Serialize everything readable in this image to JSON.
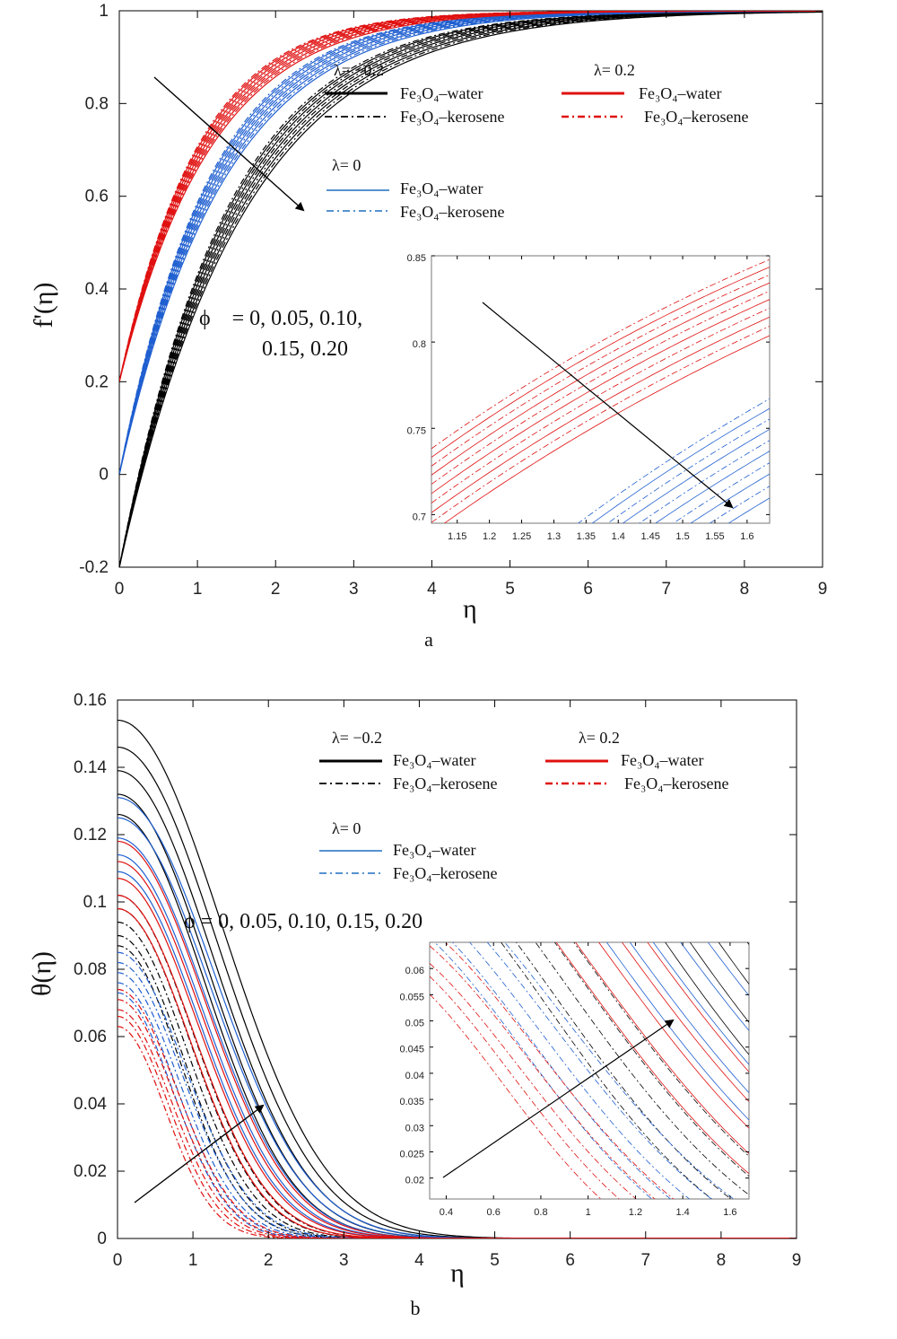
{
  "panels": [
    {
      "id": "a",
      "caption": "a",
      "ylabel": "f'(η)",
      "xlabel": "η",
      "xlim": [
        0,
        9
      ],
      "ylim": [
        -0.2,
        1
      ],
      "xticks": [
        "0",
        "1",
        "2",
        "3",
        "4",
        "5",
        "6",
        "7",
        "8",
        "9"
      ],
      "yticks": [
        "-0.2",
        "0",
        "0.2",
        "0.4",
        "0.6",
        "0.8",
        "1"
      ],
      "legend": {
        "groups": [
          {
            "title": "λ= −0.2",
            "color": "#000000",
            "water": "Fe₃O₄–water",
            "kerosene": "Fe₃O₄–kerosene"
          },
          {
            "title": "λ= 0.2",
            "color": "#e01010",
            "water": "Fe₃O₄–water",
            "kerosene": "Fe₃O₄–kerosene"
          },
          {
            "title": "λ= 0",
            "color": "#1f5fd0",
            "water": "Fe₃O₄–water",
            "kerosene": "Fe₃O₄–kerosene"
          }
        ]
      },
      "phi_annotation_1": "ϕ    = 0, 0.05, 0.10,",
      "phi_annotation_2": "0.15, 0.20",
      "inset": {
        "xlim": [
          1.11,
          1.635
        ],
        "ylim": [
          0.695,
          0.85
        ],
        "xticks": [
          "1.15",
          "1.2",
          "1.25",
          "1.3",
          "1.35",
          "1.4",
          "1.45",
          "1.5",
          "1.55",
          "1.6"
        ],
        "yticks": [
          "0.7",
          "0.75",
          "0.8",
          "0.85"
        ]
      }
    },
    {
      "id": "b",
      "caption": "b",
      "ylabel": "θ(η)",
      "xlabel": "η",
      "xlim": [
        0,
        9
      ],
      "ylim": [
        0,
        0.16
      ],
      "xticks": [
        "0",
        "1",
        "2",
        "3",
        "4",
        "5",
        "6",
        "7",
        "8",
        "9"
      ],
      "yticks": [
        "0",
        "0.02",
        "0.04",
        "0.06",
        "0.08",
        "0.1",
        "0.12",
        "0.14",
        "0.16"
      ],
      "legend": {
        "groups": [
          {
            "title": "λ= −0.2",
            "color": "#000000",
            "water": "Fe₃O₄–water",
            "kerosene": "Fe₃O₄–kerosene"
          },
          {
            "title": "λ= 0.2",
            "color": "#e01010",
            "water": "Fe₃O₄–water",
            "kerosene": "Fe₃O₄–kerosene"
          },
          {
            "title": "λ= 0",
            "color": "#1f5fd0",
            "water": "Fe₃O₄–water",
            "kerosene": "Fe₃O₄–kerosene"
          }
        ]
      },
      "phi_annotation_1": "ϕ = 0, 0.05, 0.10, 0.15, 0.20",
      "inset": {
        "xlim": [
          0.33,
          1.68
        ],
        "ylim": [
          0.016,
          0.065
        ],
        "xticks": [
          "0.4",
          "0.6",
          "0.8",
          "1",
          "1.2",
          "1.4",
          "1.6"
        ],
        "yticks": [
          "0.02",
          "0.025",
          "0.03",
          "0.035",
          "0.04",
          "0.045",
          "0.05",
          "0.055",
          "0.06"
        ]
      }
    }
  ],
  "chart_data": [
    {
      "type": "line",
      "title": "",
      "xlabel": "η",
      "ylabel": "f'(η)",
      "xlim": [
        0,
        9
      ],
      "ylim": [
        -0.2,
        1
      ],
      "grid": false,
      "legend_position": "top-right",
      "phi_values": [
        0,
        0.05,
        0.1,
        0.15,
        0.2
      ],
      "series": [
        {
          "name": "λ= −0.2 Fe₃O₄–water",
          "color": "#000000",
          "dash": "solid",
          "y0": -0.2,
          "rates": [
            0.76,
            0.79,
            0.82,
            0.85,
            0.88
          ]
        },
        {
          "name": "λ= −0.2 Fe₃O₄–kerosene",
          "color": "#000000",
          "dash": "dashdot",
          "y0": -0.2,
          "rates": [
            0.775,
            0.805,
            0.835,
            0.865,
            0.895
          ]
        },
        {
          "name": "λ= 0 Fe₃O₄–water",
          "color": "#1f5fd0",
          "dash": "solid",
          "y0": 0,
          "rates": [
            0.9,
            0.935,
            0.97,
            1.005,
            1.04
          ]
        },
        {
          "name": "λ= 0 Fe₃O₄–kerosene",
          "color": "#1f5fd0",
          "dash": "dashdot",
          "y0": 0,
          "rates": [
            0.917,
            0.952,
            0.987,
            1.022,
            1.057
          ]
        },
        {
          "name": "λ= 0.2 Fe₃O₄–water",
          "color": "#e01010",
          "dash": "solid",
          "y0": 0.2,
          "rates": [
            1.02,
            1.06,
            1.1,
            1.14,
            1.18
          ]
        },
        {
          "name": "λ= 0.2 Fe₃O₄–kerosene",
          "color": "#e01010",
          "dash": "dashdot",
          "y0": 0.2,
          "rates": [
            1.04,
            1.08,
            1.12,
            1.16,
            1.2
          ]
        }
      ]
    },
    {
      "type": "line",
      "title": "",
      "xlabel": "η",
      "ylabel": "θ(η)",
      "xlim": [
        0,
        9
      ],
      "ylim": [
        0,
        0.16
      ],
      "grid": false,
      "legend_position": "top-right",
      "phi_values": [
        0,
        0.05,
        0.1,
        0.15,
        0.2
      ],
      "series": [
        {
          "name": "λ= −0.2 Fe₃O₄–water",
          "color": "#000000",
          "dash": "solid",
          "theta0": [
            0.154,
            0.146,
            0.139,
            0.132,
            0.126
          ],
          "width": [
            1.95,
            1.86,
            1.78,
            1.7,
            1.63
          ]
        },
        {
          "name": "λ= −0.2 Fe₃O₄–kerosene",
          "color": "#000000",
          "dash": "dashdot",
          "theta0": [
            0.102,
            0.098,
            0.094,
            0.09,
            0.087
          ],
          "width": [
            1.4,
            1.34,
            1.28,
            1.22,
            1.17
          ]
        },
        {
          "name": "λ= 0 Fe₃O₄–water",
          "color": "#1f5fd0",
          "dash": "solid",
          "theta0": [
            0.131,
            0.125,
            0.119,
            0.114,
            0.109
          ],
          "width": [
            1.8,
            1.72,
            1.64,
            1.57,
            1.5
          ]
        },
        {
          "name": "λ= 0 Fe₃O₄–kerosene",
          "color": "#1f5fd0",
          "dash": "dashdot",
          "theta0": [
            0.085,
            0.082,
            0.079,
            0.076,
            0.073
          ],
          "width": [
            1.25,
            1.19,
            1.13,
            1.08,
            1.03
          ]
        },
        {
          "name": "λ= 0.2 Fe₃O₄–water",
          "color": "#e01010",
          "dash": "solid",
          "theta0": [
            0.118,
            0.112,
            0.107,
            0.102,
            0.098
          ],
          "width": [
            1.62,
            1.55,
            1.48,
            1.41,
            1.35
          ]
        },
        {
          "name": "λ= 0.2 Fe₃O₄–kerosene",
          "color": "#e01010",
          "dash": "dashdot",
          "theta0": [
            0.074,
            0.071,
            0.068,
            0.066,
            0.063
          ],
          "width": [
            1.1,
            1.05,
            1.0,
            0.95,
            0.9
          ]
        }
      ]
    }
  ]
}
